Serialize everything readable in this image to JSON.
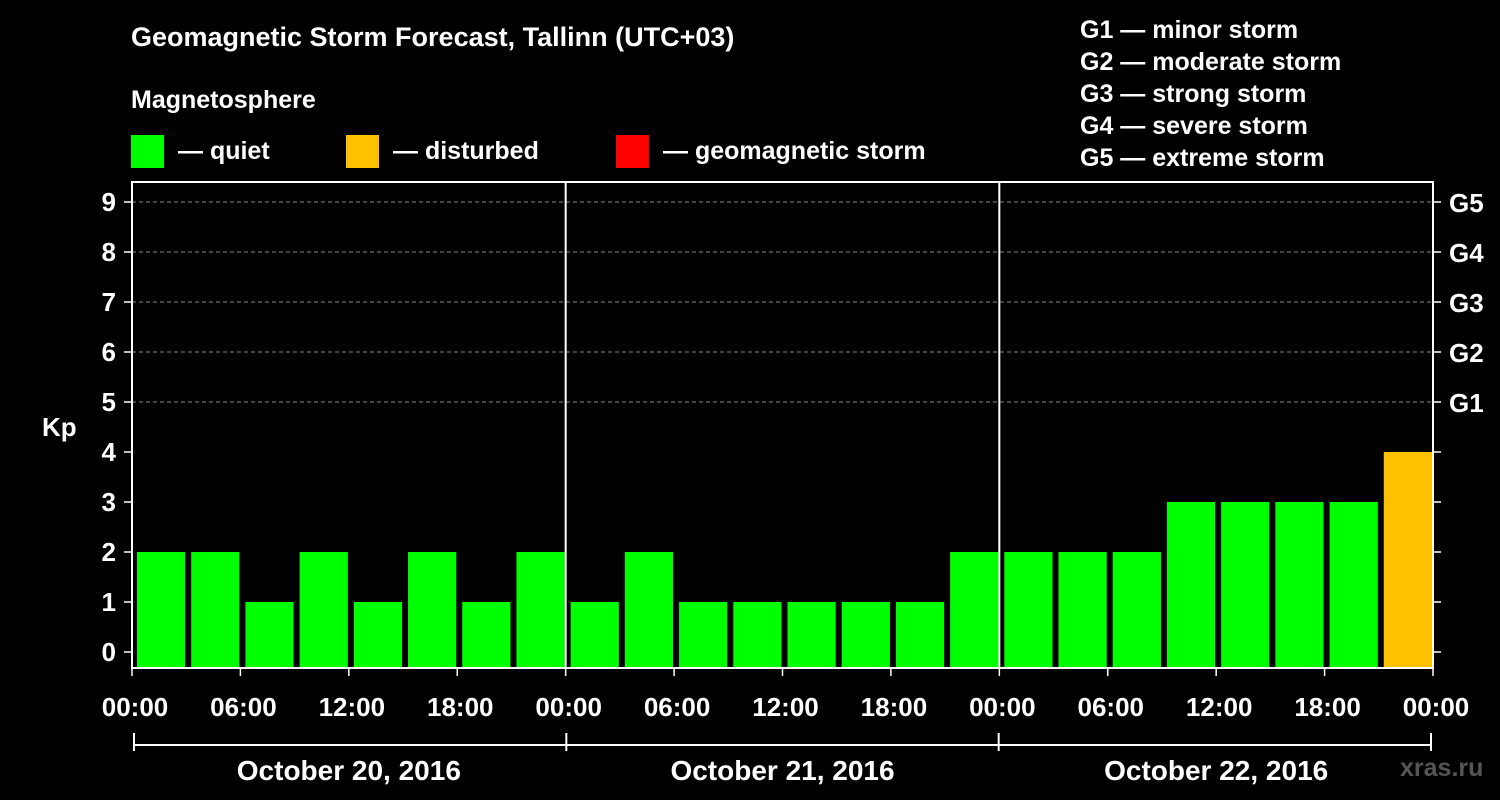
{
  "title": "Geomagnetic Storm Forecast, Tallinn (UTC+03)",
  "subtitle": "Magnetosphere",
  "legend": [
    {
      "color": "#00ff00",
      "label": "— quiet"
    },
    {
      "color": "#ffc000",
      "label": "— disturbed"
    },
    {
      "color": "#ff0000",
      "label": "— geomagnetic storm"
    }
  ],
  "storm_scale": [
    "G1 — minor storm",
    "G2 — moderate storm",
    "G3 — strong storm",
    "G4 — severe storm",
    "G5 — extreme storm"
  ],
  "watermark": "xras.ru",
  "chart_data": {
    "type": "bar",
    "ylabel": "Kp",
    "ylim": [
      0,
      9
    ],
    "yticks": [
      "0",
      "1",
      "2",
      "3",
      "4",
      "5",
      "6",
      "7",
      "8",
      "9"
    ],
    "right_ticks": [
      {
        "kp": 5,
        "label": "G1"
      },
      {
        "kp": 6,
        "label": "G2"
      },
      {
        "kp": 7,
        "label": "G3"
      },
      {
        "kp": 8,
        "label": "G4"
      },
      {
        "kp": 9,
        "label": "G5"
      }
    ],
    "grid": "dashed horizontal at Kp 5-9",
    "xticks": [
      "00:00",
      "06:00",
      "12:00",
      "18:00",
      "00:00",
      "06:00",
      "12:00",
      "18:00",
      "00:00",
      "06:00",
      "12:00",
      "18:00",
      "00:00"
    ],
    "days": [
      "October 20, 2016",
      "October 21, 2016",
      "October 22, 2016"
    ],
    "values": [
      2,
      2,
      1,
      2,
      1,
      2,
      1,
      2,
      1,
      2,
      1,
      1,
      1,
      1,
      1,
      2,
      2,
      2,
      2,
      3,
      3,
      3,
      3,
      4
    ],
    "colors": {
      "quiet": "#00ff00",
      "disturbed": "#ffc000",
      "storm": "#ff0000"
    }
  }
}
